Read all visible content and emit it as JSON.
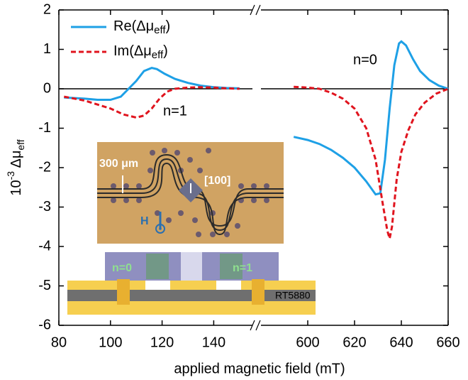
{
  "chart_data": {
    "type": "line",
    "ylabel": [
      "10",
      "-3",
      " Δμ",
      "eff"
    ],
    "xlabel": "applied magnetic field (mT)",
    "ylim": [
      -6,
      2
    ],
    "yticks": [
      -6,
      -5,
      -4,
      -3,
      -2,
      -1,
      0,
      1,
      2
    ],
    "x_segments": [
      {
        "xlim": [
          80,
          155
        ],
        "xticks": [
          80,
          100,
          120,
          140
        ]
      },
      {
        "xlim": [
          580,
          660
        ],
        "xticks": [
          600,
          620,
          640,
          660
        ]
      }
    ],
    "zero_line": true,
    "legend": "upper left",
    "series": [
      {
        "name": [
          "Re(Δμ",
          "eff",
          ")"
        ],
        "color": "#1ea0e6",
        "dash": "solid",
        "x": [
          82,
          90,
          95,
          100,
          104,
          107,
          110,
          113,
          116,
          118,
          121,
          125,
          130,
          135,
          140,
          145,
          150,
          null,
          594,
          600,
          605,
          610,
          615,
          620,
          625,
          629,
          631,
          633,
          635,
          637,
          639,
          640,
          642,
          645,
          648,
          652,
          656,
          660
        ],
        "values": [
          -0.22,
          -0.25,
          -0.28,
          -0.28,
          -0.2,
          0,
          0.2,
          0.45,
          0.53,
          0.5,
          0.38,
          0.25,
          0.15,
          0.08,
          0.04,
          0.02,
          0.01,
          null,
          -1.22,
          -1.3,
          -1.4,
          -1.55,
          -1.75,
          -2.0,
          -2.35,
          -2.68,
          -2.65,
          -1.8,
          -0.5,
          0.6,
          1.15,
          1.2,
          1.1,
          0.75,
          0.45,
          0.22,
          0.08,
          0
        ]
      },
      {
        "name": [
          "Im(Δμ",
          "eff",
          ")"
        ],
        "color": "#e0141e",
        "dash": "dashed",
        "x": [
          82,
          90,
          95,
          100,
          105,
          110,
          113,
          116,
          119,
          122,
          125,
          130,
          135,
          140,
          145,
          150,
          null,
          594,
          600,
          605,
          610,
          615,
          620,
          625,
          629,
          632,
          634,
          635,
          636,
          638,
          640,
          643,
          646,
          650,
          655,
          660
        ],
        "values": [
          -0.2,
          -0.3,
          -0.4,
          -0.5,
          -0.65,
          -0.73,
          -0.68,
          -0.5,
          -0.25,
          -0.07,
          0,
          0.03,
          0.04,
          0.03,
          0.01,
          0,
          null,
          0.05,
          0.03,
          0,
          -0.1,
          -0.25,
          -0.5,
          -1.0,
          -1.8,
          -2.9,
          -3.6,
          -3.8,
          -3.5,
          -2.3,
          -1.6,
          -1.05,
          -0.65,
          -0.35,
          -0.12,
          0
        ]
      }
    ],
    "annotations": [
      "n=1",
      "n=0"
    ],
    "inset_labels": [
      "300 μm",
      "[100]",
      "H",
      "n=0",
      "n=1",
      "RT5880"
    ]
  }
}
